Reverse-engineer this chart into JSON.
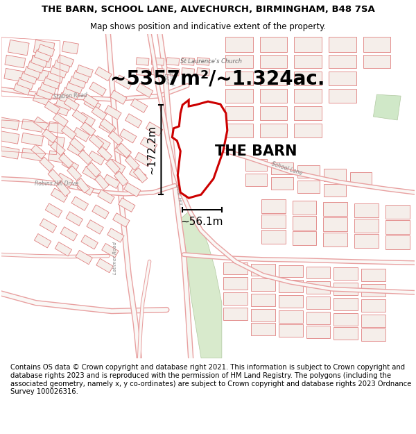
{
  "title": "THE BARN, SCHOOL LANE, ALVECHURCH, BIRMINGHAM, B48 7SA",
  "subtitle": "Map shows position and indicative extent of the property.",
  "area_label": "~5357m²/~1.324ac.",
  "property_label": "THE BARN",
  "dim_vertical": "~172.2m",
  "dim_horizontal": "~56.1m",
  "footer": "Contains OS data © Crown copyright and database right 2021. This information is subject to Crown copyright and database rights 2023 and is reproduced with the permission of HM Land Registry. The polygons (including the associated geometry, namely x, y co-ordinates) are subject to Crown copyright and database rights 2023 Ordnance Survey 100026316.",
  "map_bg": "#faf8f6",
  "red_color": "#cc0000",
  "road_stroke": "#e8a0a0",
  "building_edge": "#e08080",
  "building_fill": "#f5eeea",
  "green_fill": "#d8eacc",
  "green_edge": "#b0c8a0",
  "text_road": "#888888",
  "title_fontsize": 9.5,
  "subtitle_fontsize": 8.5,
  "area_fontsize": 20,
  "label_fontsize": 15,
  "footer_fontsize": 7.2,
  "dim_fontsize": 11
}
